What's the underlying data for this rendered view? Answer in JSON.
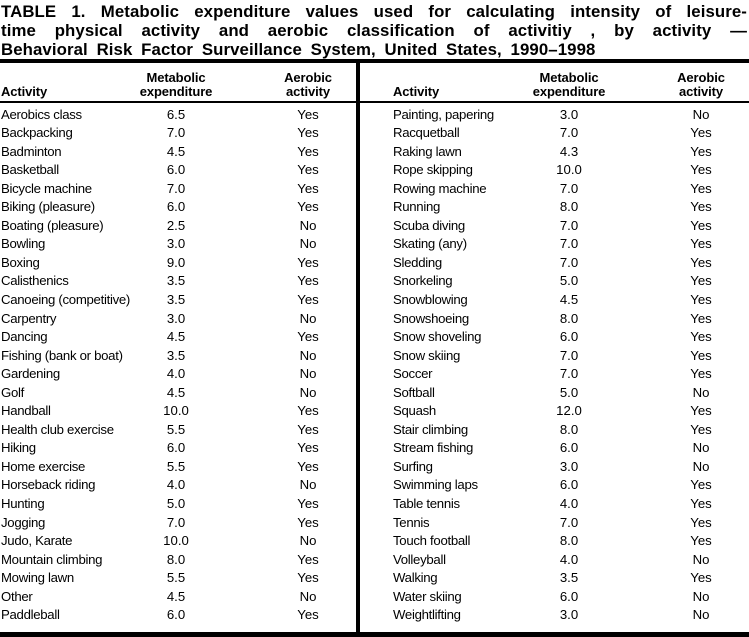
{
  "colors": {
    "text": "#000000",
    "background": "#ffffff",
    "rules": "#000000"
  },
  "title": {
    "lines": [
      "TABLE 1. Metabolic expenditure values used for calculating intensity of leisure-",
      "time physical activity and aerobic classification of activitiy , by activity —",
      "Behavioral Risk Factor Surveillance System, United States, 1990–1998"
    ]
  },
  "table": {
    "headers": {
      "activity": "Activity",
      "metabolic_line1": "Metabolic",
      "metabolic_line2": "expenditure",
      "aerobic_line1": "Aerobic",
      "aerobic_line2": "activity"
    },
    "left_rows": [
      [
        "Aerobics class",
        "6.5",
        "Yes"
      ],
      [
        "Backpacking",
        "7.0",
        "Yes"
      ],
      [
        "Badminton",
        "4.5",
        "Yes"
      ],
      [
        "Basketball",
        "6.0",
        "Yes"
      ],
      [
        "Bicycle machine",
        "7.0",
        "Yes"
      ],
      [
        "Biking (pleasure)",
        "6.0",
        "Yes"
      ],
      [
        "Boating (pleasure)",
        "2.5",
        "No"
      ],
      [
        "Bowling",
        "3.0",
        "No"
      ],
      [
        "Boxing",
        "9.0",
        "Yes"
      ],
      [
        "Calisthenics",
        "3.5",
        "Yes"
      ],
      [
        "Canoeing (competitive)",
        "3.5",
        "Yes"
      ],
      [
        "Carpentry",
        "3.0",
        "No"
      ],
      [
        "Dancing",
        "4.5",
        "Yes"
      ],
      [
        "Fishing (bank or boat)",
        "3.5",
        "No"
      ],
      [
        "Gardening",
        "4.0",
        "No"
      ],
      [
        "Golf",
        "4.5",
        "No"
      ],
      [
        "Handball",
        "10.0",
        "Yes"
      ],
      [
        "Health club exercise",
        "5.5",
        "Yes"
      ],
      [
        "Hiking",
        "6.0",
        "Yes"
      ],
      [
        "Home exercise",
        "5.5",
        "Yes"
      ],
      [
        "Horseback riding",
        "4.0",
        "No"
      ],
      [
        "Hunting",
        "5.0",
        "Yes"
      ],
      [
        "Jogging",
        "7.0",
        "Yes"
      ],
      [
        "Judo, Karate",
        "10.0",
        "No"
      ],
      [
        "Mountain climbing",
        "8.0",
        "Yes"
      ],
      [
        "Mowing lawn",
        "5.5",
        "Yes"
      ],
      [
        "Other",
        "4.5",
        "No"
      ],
      [
        "Paddleball",
        "6.0",
        "Yes"
      ]
    ],
    "right_rows": [
      [
        "Painting, papering",
        "3.0",
        "No"
      ],
      [
        "Racquetball",
        "7.0",
        "Yes"
      ],
      [
        "Raking lawn",
        "4.3",
        "Yes"
      ],
      [
        "Rope skipping",
        "10.0",
        "Yes"
      ],
      [
        "Rowing machine",
        "7.0",
        "Yes"
      ],
      [
        "Running",
        "8.0",
        "Yes"
      ],
      [
        "Scuba diving",
        "7.0",
        "Yes"
      ],
      [
        "Skating (any)",
        "7.0",
        "Yes"
      ],
      [
        "Sledding",
        "7.0",
        "Yes"
      ],
      [
        "Snorkeling",
        "5.0",
        "Yes"
      ],
      [
        "Snowblowing",
        "4.5",
        "Yes"
      ],
      [
        "Snowshoeing",
        "8.0",
        "Yes"
      ],
      [
        "Snow shoveling",
        "6.0",
        "Yes"
      ],
      [
        "Snow skiing",
        "7.0",
        "Yes"
      ],
      [
        "Soccer",
        "7.0",
        "Yes"
      ],
      [
        "Softball",
        "5.0",
        "No"
      ],
      [
        "Squash",
        "12.0",
        "Yes"
      ],
      [
        "Stair climbing",
        "8.0",
        "Yes"
      ],
      [
        "Stream fishing",
        "6.0",
        "No"
      ],
      [
        "Surfing",
        "3.0",
        "No"
      ],
      [
        "Swimming laps",
        "6.0",
        "Yes"
      ],
      [
        "Table tennis",
        "4.0",
        "Yes"
      ],
      [
        "Tennis",
        "7.0",
        "Yes"
      ],
      [
        "Touch football",
        "8.0",
        "Yes"
      ],
      [
        "Volleyball",
        "4.0",
        "No"
      ],
      [
        "Walking",
        "3.5",
        "Yes"
      ],
      [
        "Water skiing",
        "6.0",
        "No"
      ],
      [
        "Weightlifting",
        "3.0",
        "No"
      ]
    ]
  }
}
